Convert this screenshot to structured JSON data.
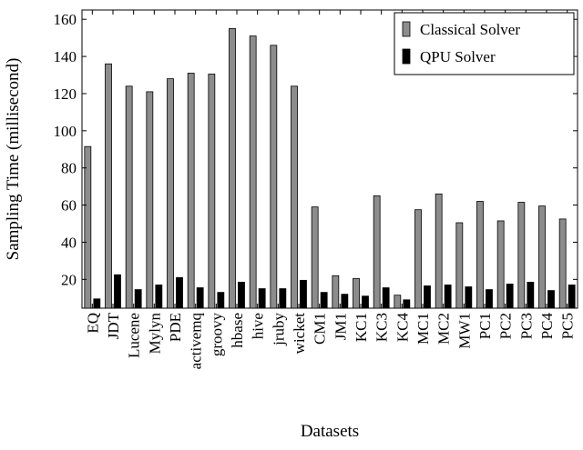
{
  "chart_data": {
    "type": "bar",
    "title": "",
    "xlabel": "Datasets",
    "ylabel": "Sampling Time (millisecond)",
    "ylim": [
      4.5,
      165
    ],
    "yticks": [
      20,
      40,
      60,
      80,
      100,
      120,
      140,
      160
    ],
    "grid": false,
    "legend_position": "top-right",
    "categories": [
      "EQ",
      "JDT",
      "Lucene",
      "Mylyn",
      "PDE",
      "activemq",
      "groovy",
      "hbase",
      "hive",
      "jruby",
      "wicket",
      "CM1",
      "JM1",
      "KC1",
      "KC3",
      "KC4",
      "MC1",
      "MC2",
      "MW1",
      "PC1",
      "PC2",
      "PC3",
      "PC4",
      "PC5"
    ],
    "series": [
      {
        "name": "Classical Solver",
        "color": "#8c8c8c",
        "values": [
          91.5,
          136,
          124,
          121,
          128,
          131,
          130.5,
          155,
          151,
          146,
          124,
          59,
          22,
          20.5,
          65,
          11.5,
          57.5,
          66,
          50.5,
          62,
          51.5,
          61.5,
          59.5,
          52.5
        ]
      },
      {
        "name": "QPU Solver",
        "color": "#000000",
        "values": [
          9.5,
          22.5,
          14.5,
          17,
          21,
          15.5,
          13,
          18.5,
          15,
          15,
          19.5,
          13,
          12,
          11,
          15.5,
          9,
          16.5,
          17,
          16,
          14.5,
          17.5,
          18.5,
          14,
          17
        ]
      }
    ]
  }
}
